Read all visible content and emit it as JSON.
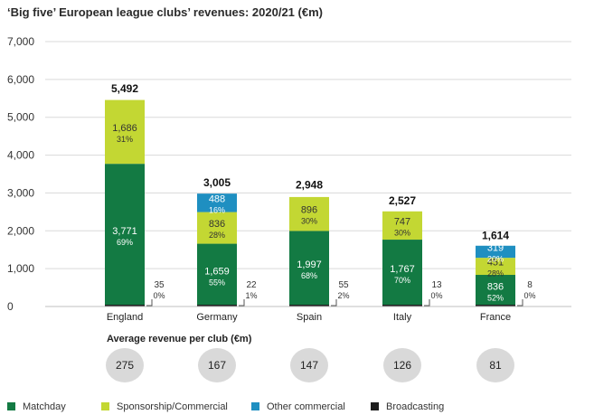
{
  "title": "‘Big five’ European league clubs’ revenues: 2020/21 (€m)",
  "colors": {
    "matchday": "#137a43",
    "sponsorship": "#c3d733",
    "other_commercial": "#1f8fc1",
    "broadcasting": "#1e1e1e",
    "gridline": "#d9d9d9",
    "bubble": "#d9d9d9"
  },
  "chart_data": {
    "type": "bar",
    "stacked": true,
    "title": "‘Big five’ European league clubs’ revenues: 2020/21 (€m)",
    "categories": [
      "England",
      "Germany",
      "Spain",
      "Italy",
      "France"
    ],
    "ylim": [
      0,
      7000
    ],
    "yticks": [
      "0",
      "1,000",
      "2,000",
      "3,000",
      "4,000",
      "5,000",
      "6,000",
      "7,000"
    ],
    "ytick_values": [
      0,
      1000,
      2000,
      3000,
      4000,
      5000,
      6000,
      7000
    ],
    "grid": true,
    "series": [
      {
        "name": "Matchday",
        "key": "matchday",
        "values": [
          35,
          22,
          55,
          13,
          8
        ],
        "labels": [
          "35",
          "22",
          "55",
          "13",
          "8"
        ],
        "pcts": [
          "0%",
          "1%",
          "2%",
          "0%",
          "0%"
        ]
      },
      {
        "name": "Sponsorship/Commercial",
        "key": "sponsorship",
        "values": [
          3771,
          1659,
          1997,
          1767,
          836
        ],
        "labels": [
          "3,771",
          "1,659",
          "1,997",
          "1,767",
          "836"
        ],
        "pcts": [
          "69%",
          "55%",
          "68%",
          "70%",
          "52%"
        ]
      },
      {
        "name": "Other commercial",
        "key": "other_commercial",
        "values": [
          1686,
          836,
          896,
          747,
          451
        ],
        "labels": [
          "1,686",
          "836",
          "896",
          "747",
          "451"
        ],
        "pcts": [
          "31%",
          "28%",
          "30%",
          "30%",
          "28%"
        ]
      },
      {
        "name": "Broadcasting",
        "key": "broadcasting",
        "values": [
          0,
          488,
          0,
          0,
          319
        ],
        "labels": [
          "",
          "488",
          "",
          "",
          "319"
        ],
        "pcts": [
          "",
          "16%",
          "",
          "",
          "20%"
        ]
      }
    ],
    "totals": [
      "5,492",
      "3,005",
      "2,948",
      "2,527",
      "1,614"
    ],
    "total_values": [
      5492,
      3005,
      2948,
      2527,
      1614
    ],
    "avg_revenue_label": "Average revenue per club (€m)",
    "avg_revenue": [
      "275",
      "167",
      "147",
      "126",
      "81"
    ],
    "legend": [
      "Matchday",
      "Sponsorship/Commercial",
      "Other commercial",
      "Broadcasting"
    ],
    "legend_position": "bottom"
  }
}
